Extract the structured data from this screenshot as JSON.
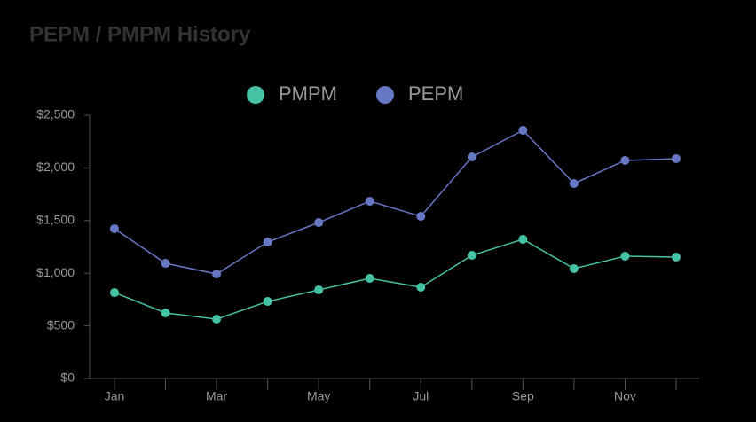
{
  "chart_data": {
    "type": "line",
    "title": "PEPM / PMPM History",
    "categories": [
      "Jan",
      null,
      "Mar",
      null,
      "May",
      null,
      "Jul",
      null,
      "Sep",
      null,
      "Nov",
      null
    ],
    "series": [
      {
        "name": "PMPM",
        "color": "#45c1a3",
        "values": [
          816,
          623,
          564,
          732,
          842,
          951,
          867,
          1170,
          1322,
          1044,
          1162,
          1153
        ]
      },
      {
        "name": "PEPM",
        "color": "#6677c4",
        "values": [
          1423,
          1094,
          993,
          1296,
          1481,
          1684,
          1540,
          2104,
          2357,
          1852,
          2071,
          2088
        ]
      }
    ],
    "ylim": [
      0,
      2500
    ],
    "yticks": [
      {
        "value": 0,
        "label": "$0"
      },
      {
        "value": 500,
        "label": "$500"
      },
      {
        "value": 1000,
        "label": "$1,000"
      },
      {
        "value": 1500,
        "label": "$1,500"
      },
      {
        "value": 2000,
        "label": "$2,000"
      },
      {
        "value": 2500,
        "label": "$2,500"
      }
    ],
    "legend": "top",
    "grid": false
  }
}
